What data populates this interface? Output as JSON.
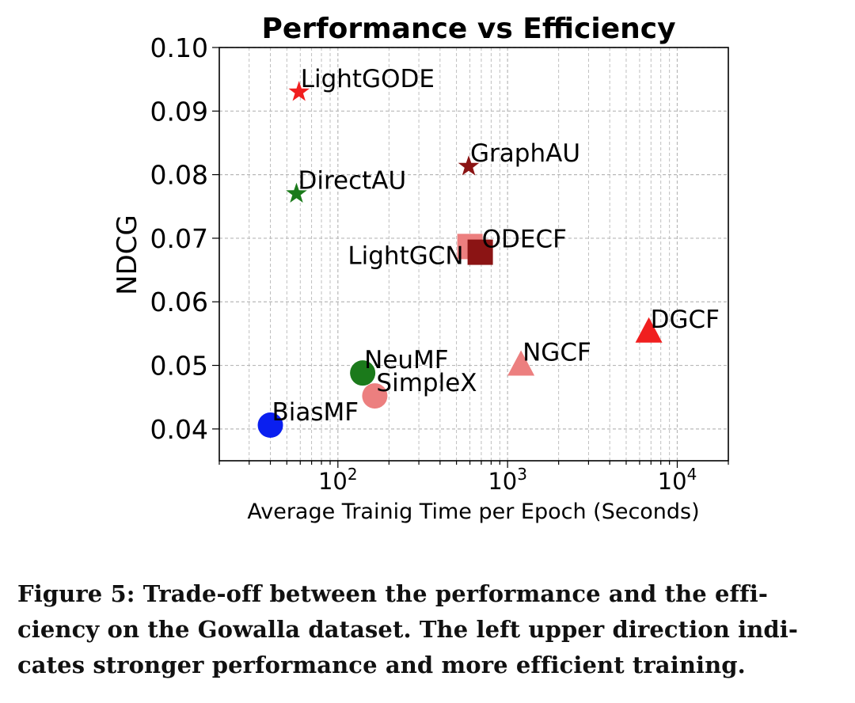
{
  "chart_data": {
    "type": "scatter",
    "title": "Performance vs Efficiency",
    "xlabel": "Average Trainig Time per Epoch (Seconds)",
    "ylabel": "NDCG",
    "xscale": "log",
    "xlim": [
      20,
      20000
    ],
    "ylim": [
      0.035,
      0.1
    ],
    "grid": true,
    "x_ticks": [
      100,
      1000,
      10000
    ],
    "x_tick_labels": [
      "10^2",
      "10^3",
      "10^4"
    ],
    "y_ticks": [
      0.04,
      0.05,
      0.06,
      0.07,
      0.08,
      0.09,
      0.1
    ],
    "y_tick_labels": [
      "0.04",
      "0.05",
      "0.06",
      "0.07",
      "0.08",
      "0.09",
      "0.10"
    ],
    "points": [
      {
        "label": "BiasMF",
        "x": 40,
        "y": 0.0406,
        "marker": "circle",
        "color": "#0a1ff0",
        "label_pos": "upper-right"
      },
      {
        "label": "NeuMF",
        "x": 140,
        "y": 0.0488,
        "marker": "circle",
        "color": "#1b7a1b",
        "label_pos": "upper-right"
      },
      {
        "label": "SimpleX",
        "x": 165,
        "y": 0.0452,
        "marker": "circle",
        "color": "#ec7f7f",
        "label_pos": "upper-right"
      },
      {
        "label": "LightGCN",
        "x": 600,
        "y": 0.0687,
        "marker": "square",
        "color": "#ec7f7f",
        "label_pos": "lower-left"
      },
      {
        "label": "ODECF",
        "x": 690,
        "y": 0.0678,
        "marker": "square",
        "color": "#8b1414",
        "label_pos": "upper-right"
      },
      {
        "label": "NGCF",
        "x": 1200,
        "y": 0.05,
        "marker": "triangle",
        "color": "#ec7f7f",
        "label_pos": "upper-right"
      },
      {
        "label": "DGCF",
        "x": 6800,
        "y": 0.0552,
        "marker": "triangle",
        "color": "#f01f1f",
        "label_pos": "upper-right"
      },
      {
        "label": "LightGODE",
        "x": 59,
        "y": 0.093,
        "marker": "star",
        "color": "#f01f1f",
        "label_pos": "upper-right"
      },
      {
        "label": "DirectAU",
        "x": 57,
        "y": 0.077,
        "marker": "star",
        "color": "#1b7a1b",
        "label_pos": "upper-right"
      },
      {
        "label": "GraphAU",
        "x": 590,
        "y": 0.0813,
        "marker": "star",
        "color": "#8b1414",
        "label_pos": "upper-right"
      }
    ]
  },
  "caption": {
    "lines": [
      "Figure 5: Trade-off between the performance and the effi-",
      "ciency on the Gowalla dataset. The left upper direction indi-",
      "cates stronger performance and more efficient training."
    ]
  }
}
